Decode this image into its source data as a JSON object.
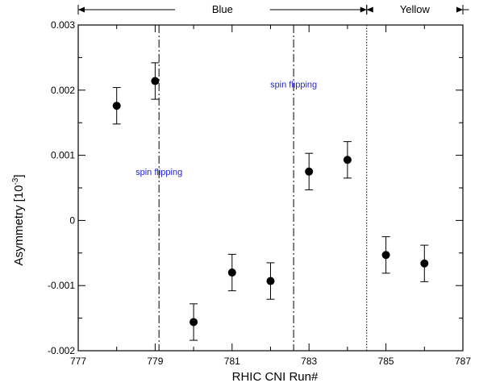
{
  "chart_data": {
    "type": "scatter",
    "xlabel": "RHIC CNI Run#",
    "ylabel_main": "Asymmetry [10",
    "ylabel_exp": "-3",
    "ylabel_close": "]",
    "xlim": [
      777,
      787
    ],
    "ylim": [
      -0.002,
      0.003
    ],
    "x_ticks": [
      777,
      779,
      781,
      783,
      785,
      787
    ],
    "y_ticks": [
      {
        "value": 0.003,
        "label": "0.003"
      },
      {
        "value": 0.002,
        "label": "0.002"
      },
      {
        "value": 0.001,
        "label": "0.001"
      },
      {
        "value": 0,
        "label": "0"
      },
      {
        "value": -0.001,
        "label": "-0.001"
      },
      {
        "value": -0.002,
        "label": "-0.002"
      }
    ],
    "x_minor_step": 1,
    "y_minor_step": 0.0005,
    "grid": false,
    "points": [
      {
        "x": 778,
        "y": 0.00176,
        "err": 0.00028
      },
      {
        "x": 779,
        "y": 0.00214,
        "err": 0.00028
      },
      {
        "x": 780,
        "y": -0.00156,
        "err": 0.00028
      },
      {
        "x": 781,
        "y": -0.0008,
        "err": 0.00028
      },
      {
        "x": 782,
        "y": -0.00093,
        "err": 0.00028
      },
      {
        "x": 783,
        "y": 0.00075,
        "err": 0.00028
      },
      {
        "x": 784,
        "y": 0.00093,
        "err": 0.00028
      },
      {
        "x": 785,
        "y": -0.00053,
        "err": 0.00028
      },
      {
        "x": 786,
        "y": -0.00066,
        "err": 0.00028
      }
    ],
    "vlines": [
      {
        "x": 779.1,
        "style": "dashdot"
      },
      {
        "x": 782.6,
        "style": "dashdot"
      },
      {
        "x": 784.5,
        "style": "dotted"
      }
    ],
    "annotations": [
      {
        "text": "spin flipping",
        "x": 779.1,
        "y": 0.00075
      },
      {
        "text": "spin flipping",
        "x": 782.6,
        "y": 0.00209
      }
    ],
    "regions": [
      {
        "label": "Blue",
        "x_start": 777,
        "x_end": 784.5
      },
      {
        "label": "Yellow",
        "x_start": 784.5,
        "x_end": 787
      }
    ],
    "colors": {
      "markers": "#000000",
      "annotation_text": "#1f1fd6"
    }
  }
}
